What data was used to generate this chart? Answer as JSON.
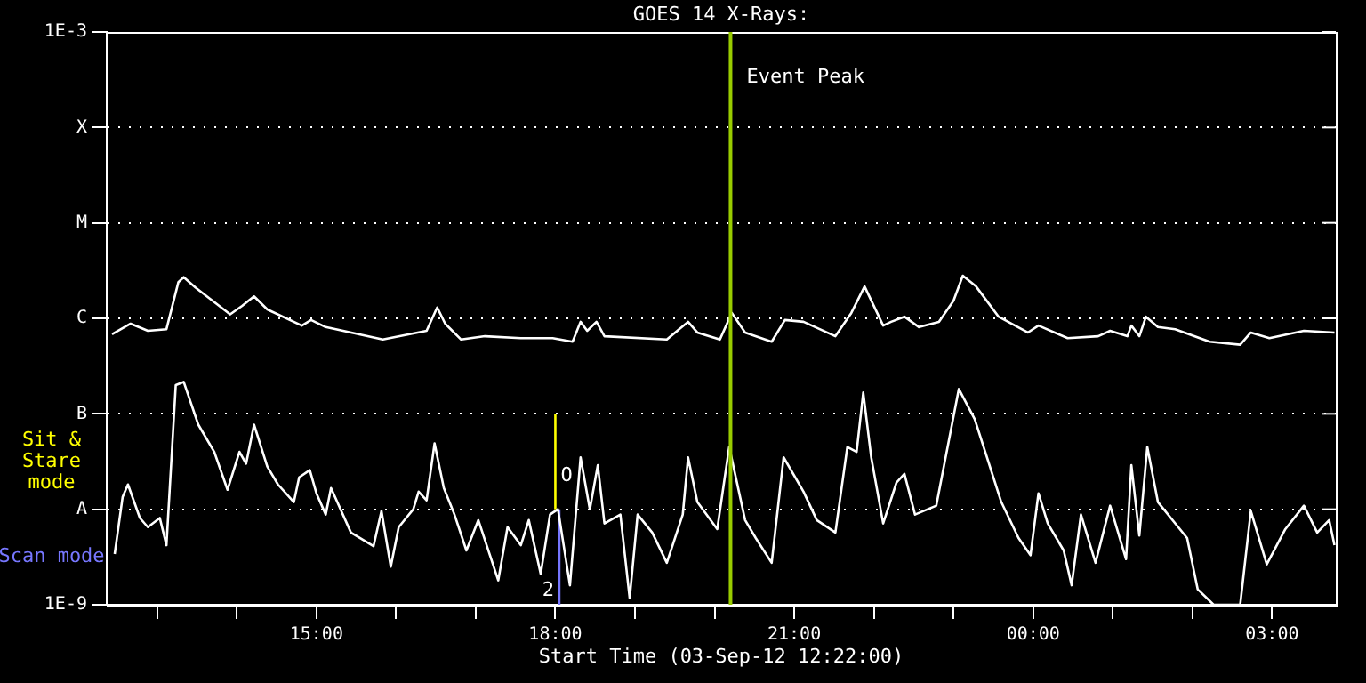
{
  "chart_data": {
    "type": "line",
    "title": "GOES 14 X-Rays:",
    "xlabel": "Start Time (03-Sep-12 12:22:00)",
    "xlim": [
      "--09-03T12:22",
      "--09-04T03:48"
    ],
    "xticks": [
      {
        "value": "--09-03T13:00",
        "label": null
      },
      {
        "value": "--09-03T14:00",
        "label": null
      },
      {
        "value": "--09-03T15:00",
        "label": "15:00"
      },
      {
        "value": "--09-03T16:00",
        "label": null
      },
      {
        "value": "--09-03T17:00",
        "label": null
      },
      {
        "value": "--09-03T18:00",
        "label": "18:00"
      },
      {
        "value": "--09-03T19:00",
        "label": null
      },
      {
        "value": "--09-03T20:00",
        "label": null
      },
      {
        "value": "--09-03T21:00",
        "label": "21:00"
      },
      {
        "value": "--09-03T22:00",
        "label": null
      },
      {
        "value": "--09-03T23:00",
        "label": null
      },
      {
        "value": "--09-04T00:00",
        "label": "00:00"
      },
      {
        "value": "--09-04T01:00",
        "label": null
      },
      {
        "value": "--09-04T02:00",
        "label": null
      },
      {
        "value": "--09-04T03:00",
        "label": "03:00"
      }
    ],
    "ylim": [
      1e-09,
      0.001
    ],
    "log": "y",
    "yticks": [
      {
        "value": 1e-09,
        "label": "1E-9"
      },
      {
        "value": 1e-08,
        "label": "A"
      },
      {
        "value": 1e-07,
        "label": "B"
      },
      {
        "value": 1e-06,
        "label": "C"
      },
      {
        "value": 1e-05,
        "label": "M"
      },
      {
        "value": 0.0001,
        "label": "X"
      },
      {
        "value": 0.001,
        "label": "1E-3"
      }
    ],
    "grid": "y",
    "legend": "left",
    "marker": "none",
    "line_style": "solid",
    "series": [
      {
        "type": "line",
        "color": "#ffffff",
        "x": [
          "--09-03T12:26",
          "--09-03T12:40",
          "--09-03T12:53",
          "--09-03T13:07",
          "--09-03T13:16",
          "--09-03T13:20",
          "--09-03T13:29",
          "--09-03T13:55",
          "--09-03T14:04",
          "--09-03T14:13",
          "--09-03T14:23",
          "--09-03T14:49",
          "--09-03T14:56",
          "--09-03T15:07",
          "--09-03T15:50",
          "--09-03T16:23",
          "--09-03T16:31",
          "--09-03T16:37",
          "--09-03T16:49",
          "--09-03T17:07",
          "--09-03T17:34",
          "--09-03T17:58",
          "--09-03T18:13",
          "--09-03T18:19",
          "--09-03T18:24",
          "--09-03T18:31",
          "--09-03T18:37",
          "--09-03T19:24",
          "--09-03T19:40",
          "--09-03T19:47",
          "--09-03T20:04",
          "--09-03T20:13",
          "--09-03T20:23",
          "--09-03T20:43",
          "--09-03T20:53",
          "--09-03T21:07",
          "--09-03T21:31",
          "--09-03T21:43",
          "--09-03T21:53",
          "--09-03T22:07",
          "--09-03T22:13",
          "--09-03T22:23",
          "--09-03T22:34",
          "--09-03T22:49",
          "--09-03T23:00",
          "--09-03T23:07",
          "--09-03T23:17",
          "--09-03T23:34",
          "--09-03T23:56",
          "--09-04T00:04",
          "--09-04T00:26",
          "--09-04T00:49",
          "--09-04T00:58",
          "--09-04T01:11",
          "--09-04T01:14",
          "--09-04T01:20",
          "--09-04T01:25",
          "--09-04T01:34",
          "--09-04T01:47",
          "--09-04T02:13",
          "--09-04T02:36",
          "--09-04T02:44",
          "--09-04T02:58",
          "--09-04T03:24",
          "--09-04T03:47"
        ],
        "values": [
          6.8e-07,
          8.8e-07,
          7.4e-07,
          7.7e-07,
          2.4e-06,
          2.7e-06,
          2.1e-06,
          1.1e-06,
          1.35e-06,
          1.7e-06,
          1.24e-06,
          8.4e-07,
          9.6e-07,
          8.1e-07,
          6e-07,
          7.4e-07,
          1.3e-06,
          8.8e-07,
          6e-07,
          6.5e-07,
          6.2e-07,
          6.2e-07,
          5.7e-07,
          9.2e-07,
          7.4e-07,
          9.2e-07,
          6.5e-07,
          6e-07,
          9.2e-07,
          7.1e-07,
          6e-07,
          1.14e-06,
          7.1e-07,
          5.7e-07,
          9.6e-07,
          9.2e-07,
          6.5e-07,
          1.14e-06,
          2.16e-06,
          8.4e-07,
          9.2e-07,
          1.04e-06,
          8.1e-07,
          9.2e-07,
          1.53e-06,
          2.8e-06,
          2.16e-06,
          1.04e-06,
          7.1e-07,
          8.4e-07,
          6.2e-07,
          6.5e-07,
          7.4e-07,
          6.5e-07,
          8.4e-07,
          6.5e-07,
          1.04e-06,
          8.1e-07,
          7.7e-07,
          5.7e-07,
          5.3e-07,
          7.1e-07,
          6.2e-07,
          7.4e-07,
          7.1e-07
        ]
      },
      {
        "type": "line",
        "color": "#ffffff",
        "x": [
          "--09-03T12:28",
          "--09-03T12:34",
          "--09-03T12:38",
          "--09-03T12:47",
          "--09-03T12:53",
          "--09-03T13:02",
          "--09-03T13:07",
          "--09-03T13:14",
          "--09-03T13:20",
          "--09-03T13:31",
          "--09-03T13:43",
          "--09-03T13:53",
          "--09-03T14:02",
          "--09-03T14:07",
          "--09-03T14:13",
          "--09-03T14:23",
          "--09-03T14:31",
          "--09-03T14:43",
          "--09-03T14:47",
          "--09-03T14:55",
          "--09-03T15:00",
          "--09-03T15:07",
          "--09-03T15:11",
          "--09-03T15:26",
          "--09-03T15:43",
          "--09-03T15:49",
          "--09-03T15:56",
          "--09-03T16:02",
          "--09-03T16:13",
          "--09-03T16:17",
          "--09-03T16:23",
          "--09-03T16:29",
          "--09-03T16:36",
          "--09-03T16:44",
          "--09-03T16:53",
          "--09-03T17:02",
          "--09-03T17:17",
          "--09-03T17:24",
          "--09-03T17:34",
          "--09-03T17:40",
          "--09-03T17:49",
          "--09-03T17:56",
          "--09-03T18:02",
          "--09-03T18:11",
          "--09-03T18:19",
          "--09-03T18:26",
          "--09-03T18:32",
          "--09-03T18:37",
          "--09-03T18:49",
          "--09-03T18:56",
          "--09-03T19:02",
          "--09-03T19:13",
          "--09-03T19:24",
          "--09-03T19:36",
          "--09-03T19:40",
          "--09-03T19:47",
          "--09-03T20:02",
          "--09-03T20:11",
          "--09-03T20:23",
          "--09-03T20:31",
          "--09-03T20:43",
          "--09-03T20:52",
          "--09-03T21:07",
          "--09-03T21:17",
          "--09-03T21:31",
          "--09-03T21:40",
          "--09-03T21:47",
          "--09-03T21:52",
          "--09-03T21:58",
          "--09-03T22:07",
          "--09-03T22:17",
          "--09-03T22:23",
          "--09-03T22:31",
          "--09-03T22:47",
          "--09-03T23:04",
          "--09-03T23:16",
          "--09-03T23:36",
          "--09-03T23:49",
          "--09-03T23:58",
          "--09-04T00:04",
          "--09-04T00:11",
          "--09-04T00:23",
          "--09-04T00:29",
          "--09-04T00:36",
          "--09-04T00:47",
          "--09-04T00:58",
          "--09-04T01:10",
          "--09-04T01:14",
          "--09-04T01:20",
          "--09-04T01:26",
          "--09-04T01:34",
          "--09-04T01:56",
          "--09-04T02:04",
          "--09-04T02:16",
          "--09-04T02:29",
          "--09-04T02:36",
          "--09-04T02:44",
          "--09-04T02:56",
          "--09-04T03:10",
          "--09-04T03:24",
          "--09-04T03:34",
          "--09-04T03:43",
          "--09-04T03:47"
        ],
        "values": [
          3.4e-09,
          1.35e-08,
          1.82e-08,
          8.1e-09,
          6.5e-09,
          8.1e-09,
          4.2e-09,
          2e-07,
          2.16e-07,
          7.7e-08,
          4e-08,
          1.6e-08,
          4e-08,
          3e-08,
          7.7e-08,
          2.8e-08,
          1.82e-08,
          1.19e-08,
          2.16e-08,
          2.57e-08,
          1.47e-08,
          8.8e-09,
          1.67e-08,
          5.7e-09,
          4.1e-09,
          9.6e-09,
          2.5e-09,
          6.5e-09,
          1e-08,
          1.53e-08,
          1.24e-08,
          4.9e-08,
          1.67e-08,
          8.8e-09,
          3.7e-09,
          7.7e-09,
          1.8e-09,
          6.5e-09,
          4.2e-09,
          7.7e-09,
          2.1e-09,
          8.8e-09,
          1e-08,
          1.6e-09,
          3.5e-08,
          1e-08,
          2.9e-08,
          7.1e-09,
          8.8e-09,
          1.17e-09,
          8.8e-09,
          5.7e-09,
          2.75e-09,
          8.8e-09,
          3.5e-08,
          1.19e-08,
          6.2e-09,
          4.5e-08,
          7.7e-09,
          5e-09,
          2.75e-09,
          3.5e-08,
          1.53e-08,
          7.7e-09,
          5.7e-09,
          4.5e-08,
          4e-08,
          1.67e-07,
          3.5e-08,
          7.1e-09,
          1.9e-08,
          2.35e-08,
          8.8e-09,
          1.09e-08,
          1.82e-07,
          8.8e-08,
          1.19e-08,
          5e-09,
          3.3e-09,
          1.47e-08,
          7.1e-09,
          3.7e-09,
          1.6e-09,
          8.8e-09,
          2.75e-09,
          1.09e-08,
          3e-09,
          2.9e-08,
          5.3e-09,
          4.5e-08,
          1.19e-08,
          5e-09,
          1.45e-09,
          1e-09,
          1e-09,
          1e-09,
          9.6e-09,
          2.65e-09,
          6.2e-09,
          1.09e-08,
          5.7e-09,
          7.7e-09,
          4.2e-09
        ]
      },
      {
        "type": "line",
        "name": "Sit & Stare mode",
        "color": "#ffff00",
        "x": [
          "--09-03T18:00",
          "--09-03T18:00"
        ],
        "values": [
          1e-08,
          1e-07
        ]
      },
      {
        "type": "line",
        "name": "Scan mode",
        "color": "#7777ff",
        "x": [
          "--09-03T18:03",
          "--09-03T18:03"
        ],
        "values": [
          1e-09,
          1e-08
        ]
      }
    ],
    "ref_lines": [
      {
        "axis": "x",
        "value": "--09-03T20:12",
        "label": "Event Peak",
        "color": "#99cc00"
      }
    ],
    "annotations": [
      "O",
      "2"
    ]
  }
}
